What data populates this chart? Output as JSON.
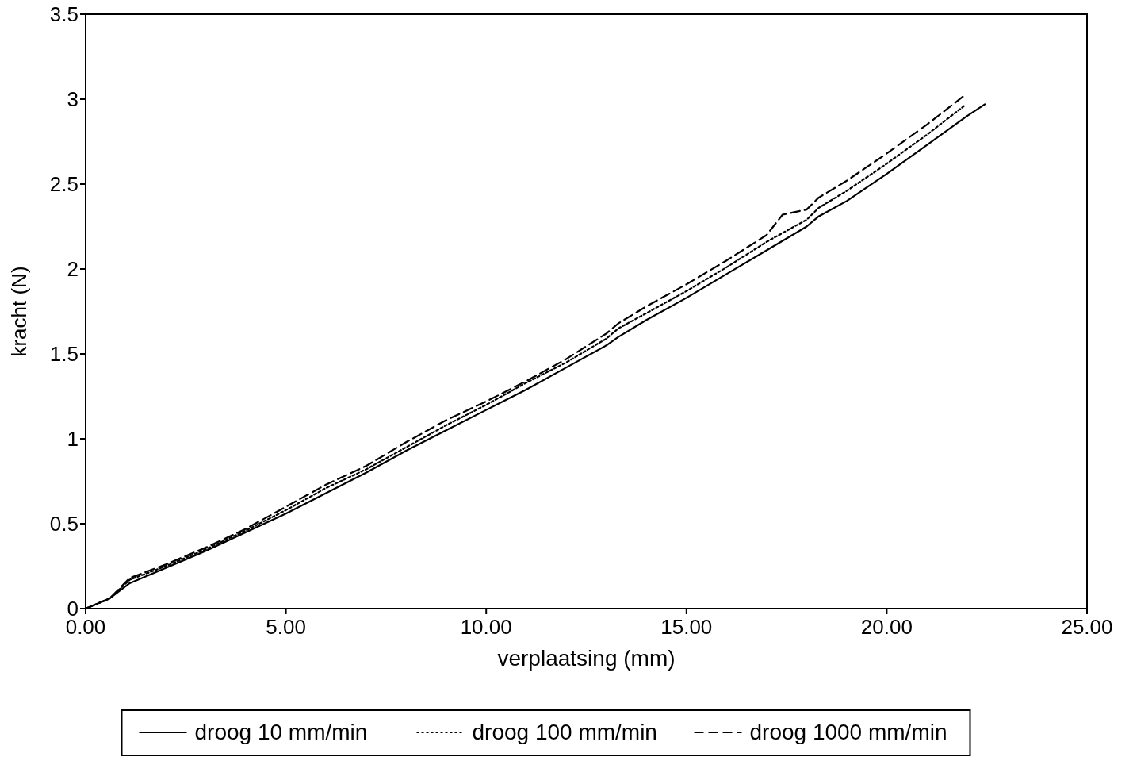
{
  "chart_data": {
    "type": "line",
    "xlabel": "verplaatsing (mm)",
    "ylabel": "kracht (N)",
    "xlim": [
      0,
      25
    ],
    "ylim": [
      0,
      3.5
    ],
    "xticks": [
      {
        "value": 0,
        "label": "0.00"
      },
      {
        "value": 5,
        "label": "5.00"
      },
      {
        "value": 10,
        "label": "10.00"
      },
      {
        "value": 15,
        "label": "15.00"
      },
      {
        "value": 20,
        "label": "20.00"
      },
      {
        "value": 25,
        "label": "25.00"
      }
    ],
    "yticks": [
      0,
      0.5,
      1,
      1.5,
      2,
      2.5,
      3,
      3.5
    ],
    "grid": false,
    "legend": "bottom",
    "series": [
      {
        "name": "droog 10 mm/min",
        "color": "#000000",
        "line_style": "solid",
        "x": [
          0,
          0.6,
          1.1,
          2,
          3,
          4,
          5,
          6,
          7,
          8,
          9,
          10,
          11,
          12,
          13,
          13.3,
          14,
          15,
          16,
          17,
          18,
          18.3,
          19,
          20,
          21,
          22,
          22.45
        ],
        "values": [
          0,
          0.06,
          0.15,
          0.24,
          0.34,
          0.45,
          0.56,
          0.68,
          0.8,
          0.93,
          1.05,
          1.17,
          1.29,
          1.42,
          1.55,
          1.6,
          1.7,
          1.83,
          1.97,
          2.11,
          2.25,
          2.31,
          2.4,
          2.56,
          2.73,
          2.9,
          2.97
        ]
      },
      {
        "name": "droog 100 mm/min",
        "color": "#000000",
        "line_style": "dotted",
        "x": [
          0,
          0.6,
          1.1,
          2,
          3,
          4,
          5,
          6,
          7,
          8,
          9,
          10,
          11,
          12,
          13,
          13.3,
          14,
          15,
          16,
          17,
          18,
          18.3,
          19,
          20,
          21,
          21.93
        ],
        "values": [
          0,
          0.06,
          0.17,
          0.25,
          0.35,
          0.46,
          0.58,
          0.71,
          0.82,
          0.95,
          1.08,
          1.2,
          1.33,
          1.45,
          1.59,
          1.65,
          1.74,
          1.87,
          2.01,
          2.16,
          2.29,
          2.36,
          2.46,
          2.62,
          2.79,
          2.96
        ]
      },
      {
        "name": "droog 1000 mm/min",
        "color": "#000000",
        "line_style": "dashed",
        "x": [
          0,
          0.6,
          1.1,
          2,
          3,
          4,
          5,
          6,
          7,
          8,
          9,
          10,
          11,
          12,
          13,
          13.3,
          14,
          15,
          16,
          17,
          17.4,
          18,
          18.3,
          19,
          20,
          21,
          21.93
        ],
        "values": [
          0,
          0.06,
          0.18,
          0.26,
          0.36,
          0.47,
          0.6,
          0.73,
          0.84,
          0.98,
          1.11,
          1.22,
          1.34,
          1.47,
          1.62,
          1.68,
          1.78,
          1.91,
          2.05,
          2.2,
          2.32,
          2.35,
          2.42,
          2.52,
          2.68,
          2.85,
          3.02
        ]
      }
    ]
  }
}
